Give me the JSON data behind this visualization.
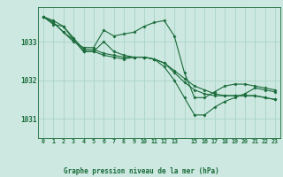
{
  "title": "Graphe pression niveau de la mer (hPa)",
  "background_color": "#cce8e0",
  "grid_color": "#aad4c8",
  "line_color": "#1a6b3a",
  "marker_color": "#1a6b3a",
  "xlim": [
    -0.5,
    23.5
  ],
  "ylim": [
    1030.5,
    1033.9
  ],
  "yticks": [
    1031,
    1032,
    1033
  ],
  "series": [
    [
      1033.65,
      1033.5,
      1033.25,
      1033.0,
      1032.85,
      1032.85,
      1033.3,
      1033.15,
      1033.2,
      1033.25,
      1033.4,
      1033.5,
      1033.55,
      1033.15,
      1032.2,
      1031.55,
      1031.55,
      1031.7,
      1031.85,
      1031.9,
      1031.9,
      1031.85,
      1031.8,
      1031.75
    ],
    [
      1033.65,
      1033.55,
      1033.4,
      1033.05,
      1032.75,
      1032.75,
      1032.65,
      1032.6,
      1032.55,
      1032.6,
      1032.6,
      1032.55,
      1032.45,
      1032.2,
      1031.95,
      1031.75,
      1031.65,
      1031.6,
      1031.6,
      1031.6,
      1031.6,
      1031.6,
      1031.55,
      1031.5
    ],
    [
      1033.65,
      1033.45,
      1033.4,
      1033.1,
      1032.8,
      1032.8,
      1032.7,
      1032.65,
      1032.6,
      1032.6,
      1032.6,
      1032.55,
      1032.45,
      1032.25,
      1032.05,
      1031.85,
      1031.75,
      1031.65,
      1031.6,
      1031.6,
      1031.6,
      1031.6,
      1031.55,
      1031.5
    ],
    [
      1033.65,
      1033.5,
      1033.25,
      1033.05,
      1032.75,
      1032.75,
      1033.0,
      1032.75,
      1032.65,
      1032.6,
      1032.6,
      1032.55,
      1032.35,
      1032.0,
      1031.55,
      1031.1,
      1031.1,
      1031.3,
      1031.45,
      1031.55,
      1031.65,
      1031.8,
      1031.75,
      1031.7
    ]
  ]
}
